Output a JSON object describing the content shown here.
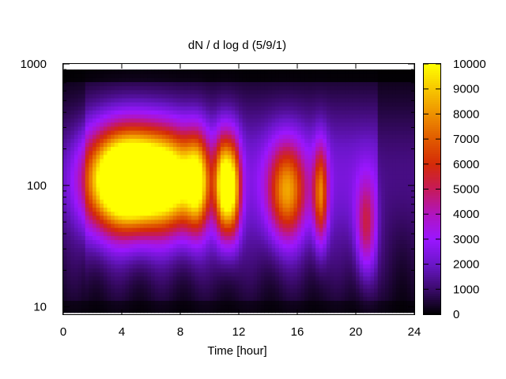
{
  "chart_data": {
    "type": "heatmap",
    "title": "dN / d log d (5/9/1)",
    "xlabel": "Time [hour]",
    "ylabel": "",
    "xlim": [
      0,
      24
    ],
    "ylim": [
      8.7,
      1000
    ],
    "yscale": "log",
    "x_ticks": [
      "0",
      "4",
      "8",
      "12",
      "16",
      "20",
      "24"
    ],
    "x_tick_values": [
      0,
      4,
      8,
      12,
      16,
      20,
      24
    ],
    "y_ticks": [
      "1000",
      "100",
      "10"
    ],
    "y_tick_values": [
      1000,
      100,
      10
    ],
    "data_extent": {
      "x": [
        0,
        24
      ],
      "y": [
        9,
        900
      ]
    },
    "colorbar": {
      "min": 0,
      "max": 10000,
      "ticks": [
        "10000",
        "9000",
        "8000",
        "7000",
        "6000",
        "5000",
        "4000",
        "3000",
        "2000",
        "1000",
        "0"
      ],
      "tick_values": [
        10000,
        9000,
        8000,
        7000,
        6000,
        5000,
        4000,
        3000,
        2000,
        1000,
        0
      ],
      "palette": "black-purple-red-orange-yellow",
      "colors": [
        "#000000",
        "#3a0a6a",
        "#6a16c8",
        "#9a16ff",
        "#b015c0",
        "#c61a5a",
        "#d42a08",
        "#e05a00",
        "#ee9000",
        "#f7c600",
        "#ffff00"
      ]
    },
    "modes": [
      {
        "center_hour": 3.5,
        "width_hour": 1.6,
        "diameter": 110,
        "peak": 7600
      },
      {
        "center_hour": 5.2,
        "width_hour": 1.6,
        "diameter": 115,
        "peak": 8400
      },
      {
        "center_hour": 7.5,
        "width_hour": 1.3,
        "diameter": 110,
        "peak": 7000
      },
      {
        "center_hour": 9.2,
        "width_hour": 0.6,
        "diameter": 105,
        "peak": 6200
      },
      {
        "center_hour": 10.9,
        "width_hour": 0.4,
        "diameter": 100,
        "peak": 7600
      },
      {
        "center_hour": 11.6,
        "width_hour": 0.4,
        "diameter": 95,
        "peak": 7000
      },
      {
        "center_hour": 15.3,
        "width_hour": 0.9,
        "diameter": 90,
        "peak": 6200
      },
      {
        "center_hour": 17.6,
        "width_hour": 0.35,
        "diameter": 85,
        "peak": 5400
      },
      {
        "center_hour": 20.7,
        "width_hour": 0.5,
        "diameter": 45,
        "peak": 3600
      }
    ],
    "background_level": 2300,
    "nighttime_level": 900
  }
}
